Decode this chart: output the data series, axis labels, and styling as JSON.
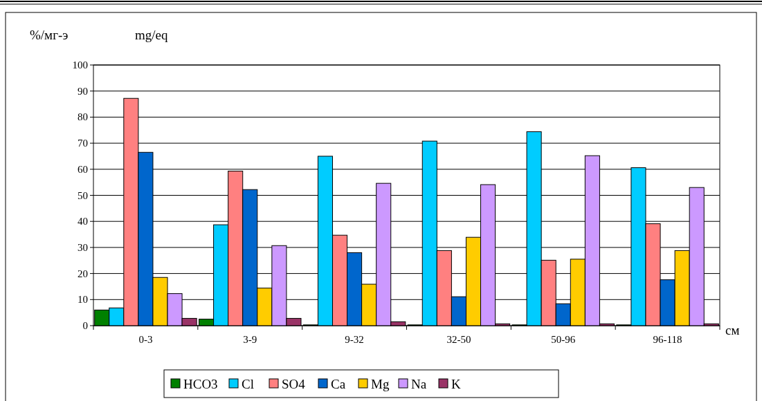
{
  "chart_data": {
    "type": "bar",
    "ylabel": "%/мг-э",
    "xlabel": "см",
    "annotations": [
      "mg/eq"
    ],
    "categories": [
      "0-3",
      "3-9",
      "9-32",
      "32-50",
      "50-96",
      "96-118"
    ],
    "series": [
      {
        "name": "HCO3",
        "color": "#008000",
        "values": [
          6,
          2.5,
          0.3,
          0.3,
          0.3,
          0.3
        ]
      },
      {
        "name": "Cl",
        "color": "#00ccff",
        "values": [
          6.8,
          38.7,
          65,
          70.8,
          74.4,
          60.6
        ]
      },
      {
        "name": "SO4",
        "color": "#ff8080",
        "values": [
          87.2,
          59.3,
          34.7,
          28.8,
          25.1,
          39.1
        ]
      },
      {
        "name": "Ca",
        "color": "#0066cc",
        "values": [
          66.5,
          52.2,
          28,
          11.1,
          8.4,
          17.6
        ]
      },
      {
        "name": "Mg",
        "color": "#ffcc00",
        "values": [
          18.5,
          14.4,
          15.9,
          33.9,
          25.5,
          28.8
        ]
      },
      {
        "name": "Na",
        "color": "#cc99ff",
        "values": [
          12.3,
          30.7,
          54.6,
          54.1,
          65.2,
          53
        ]
      },
      {
        "name": "K",
        "color": "#993366",
        "values": [
          2.8,
          2.8,
          1.5,
          0.7,
          0.7,
          0.7
        ]
      }
    ],
    "ylim": [
      0,
      100
    ],
    "yticks": [
      0,
      10,
      20,
      30,
      40,
      50,
      60,
      70,
      80,
      90,
      100
    ],
    "grid": "y",
    "legend": "bottom"
  }
}
